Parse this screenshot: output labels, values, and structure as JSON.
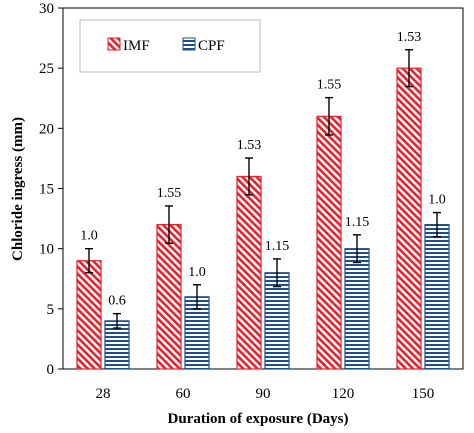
{
  "chart_data": {
    "type": "bar",
    "categories": [
      "28",
      "60",
      "90",
      "120",
      "150"
    ],
    "series": [
      {
        "name": "IMF",
        "values": [
          9,
          12,
          16,
          21,
          25
        ],
        "errors": [
          1.0,
          1.55,
          1.53,
          1.55,
          1.53
        ],
        "labels": [
          "1.0",
          "1.55",
          "1.53",
          "1.55",
          "1.53"
        ],
        "color": "#e8202a",
        "pattern": "diagonal-hatch"
      },
      {
        "name": "CPF",
        "values": [
          4,
          6,
          8,
          10,
          12
        ],
        "errors": [
          0.6,
          1.0,
          1.15,
          1.15,
          1.0
        ],
        "labels": [
          "0.6",
          "1.0",
          "1.15",
          "1.15",
          "1.0"
        ],
        "color": "#1f4e8c",
        "pattern": "horizontal-lines"
      }
    ],
    "xlabel": "Duration of exposure (Days)",
    "ylabel": "Chloride ingress (mm)",
    "ylim": [
      0,
      30
    ],
    "yticks": [
      "0",
      "5",
      "10",
      "15",
      "20",
      "25",
      "30"
    ],
    "grid": false,
    "legend": "top-left"
  }
}
